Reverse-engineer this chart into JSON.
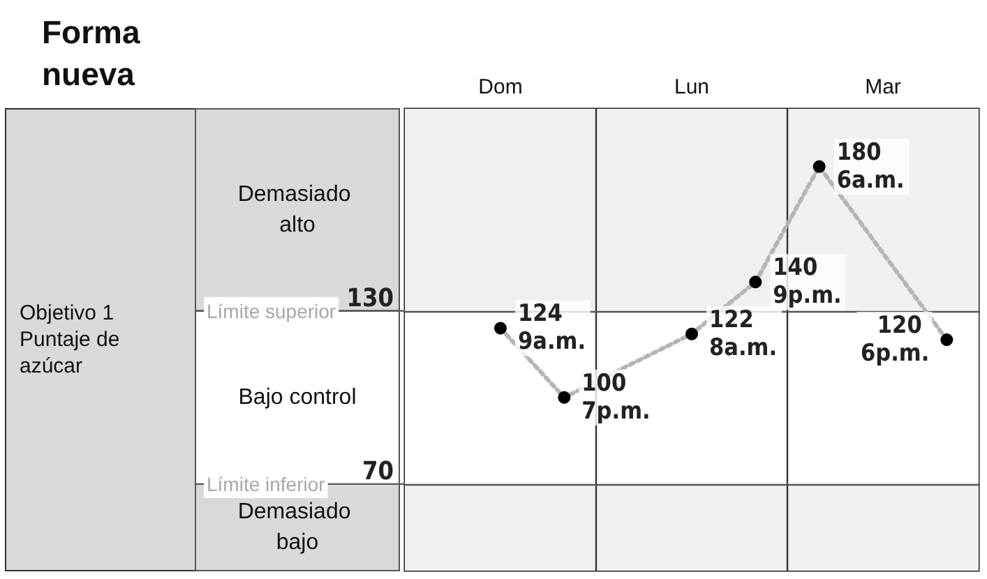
{
  "chart_data": {
    "type": "line",
    "title": "Forma nueva",
    "annotations": [
      "Objetivo 1 Puntaje de azúcar"
    ],
    "categories": [
      null,
      "Dom",
      null,
      null,
      "Lun",
      null,
      null,
      "Mar",
      null
    ],
    "series": [
      {
        "color": "#b5b5b5",
        "values": [
          null,
          124,
          100,
          null,
          122,
          140,
          180,
          null,
          120
        ],
        "value_labels": [
          null,
          "124 9a.m.",
          "100 7p.m.",
          null,
          "122 8a.m.",
          "140 9p.m.",
          "180 6a.m.",
          null,
          "120 6p.m."
        ]
      }
    ],
    "ylim": [
      40,
      200
    ],
    "yticks": [
      70,
      130
    ],
    "marker": "circle",
    "line_style": "dotted",
    "ref_lines": [
      {
        "axis": "y",
        "value": 130,
        "label": "Límite superior"
      },
      {
        "axis": "y",
        "value": 70,
        "label": "Límite inferior"
      }
    ],
    "bands": [
      {
        "axis": "y",
        "from": 130,
        "to": 200,
        "label": "Demasiado alto",
        "color": "#f0f0f0"
      },
      {
        "axis": "y",
        "from": 70,
        "to": 130,
        "label": "Bajo control",
        "color": "#ffffff"
      },
      {
        "axis": "y",
        "from": 40,
        "to": 70,
        "label": "Demasiado bajo",
        "color": "#f0f0f0"
      }
    ]
  }
}
